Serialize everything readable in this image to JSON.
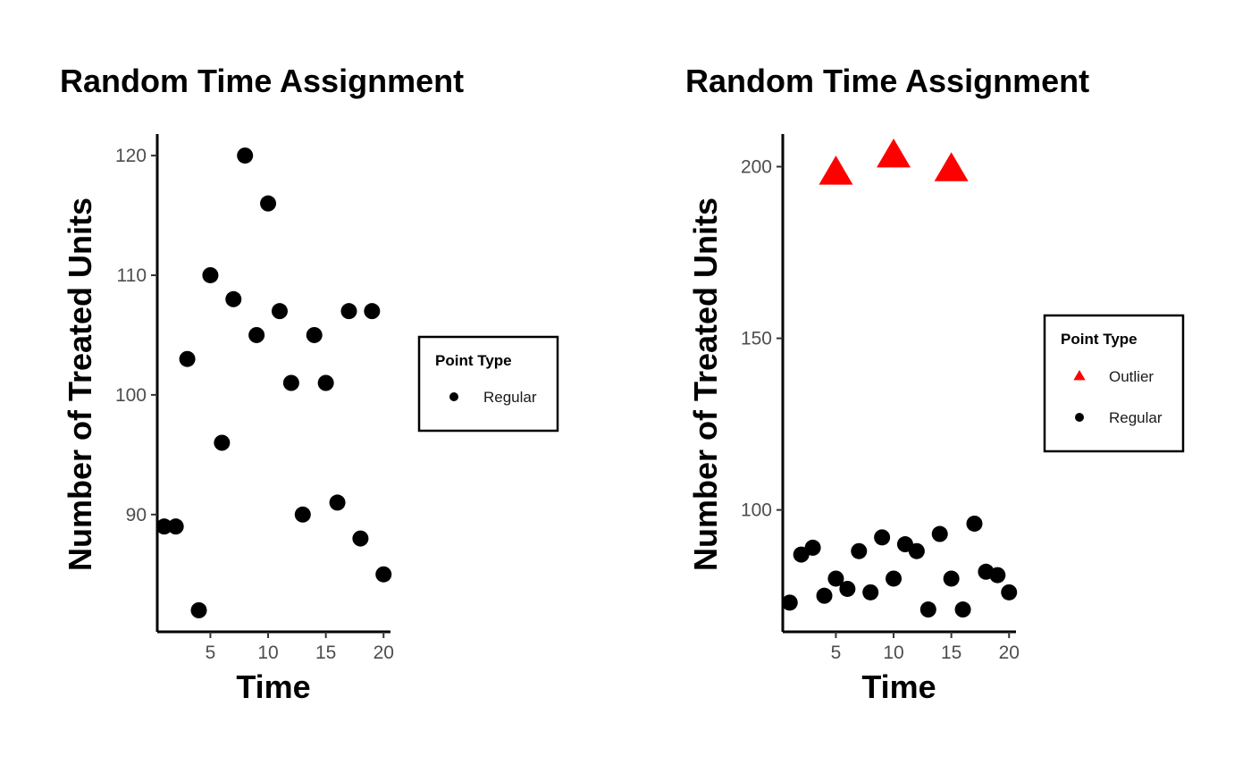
{
  "chart_data": [
    {
      "type": "scatter",
      "title": "Random Time Assignment",
      "xlabel": "Time",
      "ylabel": "Number of Treated Units",
      "xlim": [
        0.4,
        20.6
      ],
      "ylim": [
        80.2,
        121.8
      ],
      "x_ticks": [
        5,
        10,
        15,
        20
      ],
      "y_ticks": [
        90,
        100,
        110,
        120
      ],
      "grid": false,
      "legend": {
        "title": "Point Type",
        "position": "right",
        "entries": [
          {
            "label": "Regular",
            "shape": "circle",
            "color": "#000000"
          }
        ]
      },
      "series": [
        {
          "name": "Regular",
          "shape": "circle",
          "color": "#000000",
          "points": [
            [
              1,
              89
            ],
            [
              2,
              89
            ],
            [
              3,
              103
            ],
            [
              4,
              82
            ],
            [
              5,
              110
            ],
            [
              6,
              96
            ],
            [
              7,
              108
            ],
            [
              8,
              120
            ],
            [
              9,
              105
            ],
            [
              10,
              116
            ],
            [
              11,
              107
            ],
            [
              12,
              101
            ],
            [
              13,
              90
            ],
            [
              14,
              105
            ],
            [
              15,
              101
            ],
            [
              16,
              91
            ],
            [
              17,
              107
            ],
            [
              18,
              88
            ],
            [
              19,
              107
            ],
            [
              20,
              85
            ]
          ]
        }
      ]
    },
    {
      "type": "scatter",
      "title": "Random Time Assignment",
      "xlabel": "Time",
      "ylabel": "Number of Treated Units",
      "xlim": [
        0.4,
        20.6
      ],
      "ylim": [
        64.5,
        209.5
      ],
      "x_ticks": [
        5,
        10,
        15,
        20
      ],
      "y_ticks": [
        100,
        150,
        200
      ],
      "grid": false,
      "legend": {
        "title": "Point Type",
        "position": "right",
        "entries": [
          {
            "label": "Outlier",
            "shape": "triangle",
            "color": "#ff0000"
          },
          {
            "label": "Regular",
            "shape": "circle",
            "color": "#000000"
          }
        ]
      },
      "series": [
        {
          "name": "Outlier",
          "shape": "triangle",
          "color": "#ff0000",
          "points": [
            [
              5,
              198
            ],
            [
              10,
              203
            ],
            [
              15,
              199
            ]
          ]
        },
        {
          "name": "Regular",
          "shape": "circle",
          "color": "#000000",
          "points": [
            [
              1,
              73
            ],
            [
              2,
              87
            ],
            [
              3,
              89
            ],
            [
              4,
              75
            ],
            [
              5,
              80
            ],
            [
              6,
              77
            ],
            [
              7,
              88
            ],
            [
              8,
              76
            ],
            [
              9,
              92
            ],
            [
              10,
              80
            ],
            [
              11,
              90
            ],
            [
              12,
              88
            ],
            [
              13,
              71
            ],
            [
              14,
              93
            ],
            [
              15,
              80
            ],
            [
              16,
              71
            ],
            [
              17,
              96
            ],
            [
              18,
              82
            ],
            [
              19,
              81
            ],
            [
              20,
              76
            ]
          ]
        }
      ]
    }
  ]
}
